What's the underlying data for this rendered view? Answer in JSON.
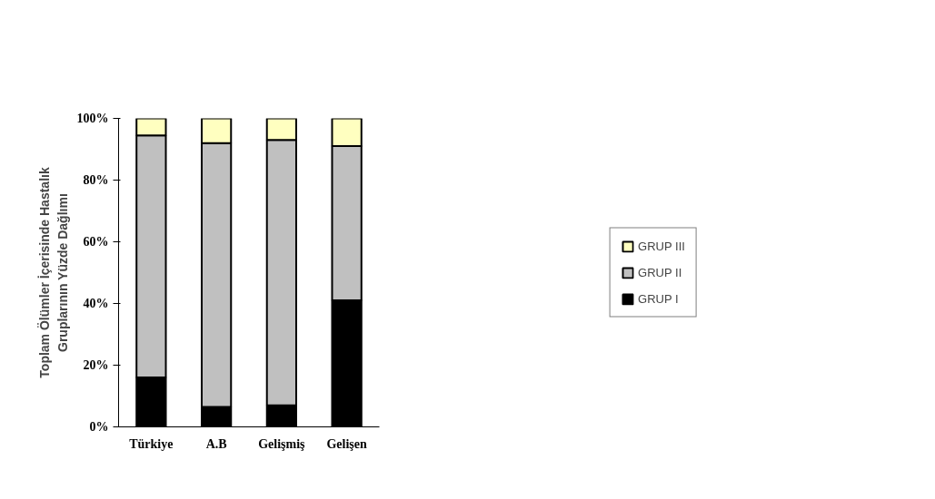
{
  "chart_data": {
    "type": "bar",
    "stacked": true,
    "ylabel": "Toplam Ölümler İçerisinde Hastalık\nGruplarının Yüzde Dağlımı",
    "categories": [
      "Türkiye",
      "A.B",
      "Gelişmiş",
      "Gelişen"
    ],
    "series": [
      {
        "name": "GRUP I",
        "color": "#000000",
        "values": [
          16,
          6.5,
          7,
          41
        ]
      },
      {
        "name": "GRUP II",
        "color": "#c0c0c0",
        "values": [
          78.5,
          85.5,
          86,
          50
        ]
      },
      {
        "name": "GRUP III",
        "color": "#ffffc0",
        "values": [
          5.5,
          8,
          7,
          9
        ]
      }
    ],
    "ylim": [
      0,
      100
    ],
    "yticks": [
      {
        "value": 0,
        "label": "0%"
      },
      {
        "value": 20,
        "label": "20%"
      },
      {
        "value": 40,
        "label": "40%"
      },
      {
        "value": 60,
        "label": "60%"
      },
      {
        "value": 80,
        "label": "80%"
      },
      {
        "value": 100,
        "label": "100%"
      }
    ],
    "grid": false,
    "legend": "right"
  }
}
